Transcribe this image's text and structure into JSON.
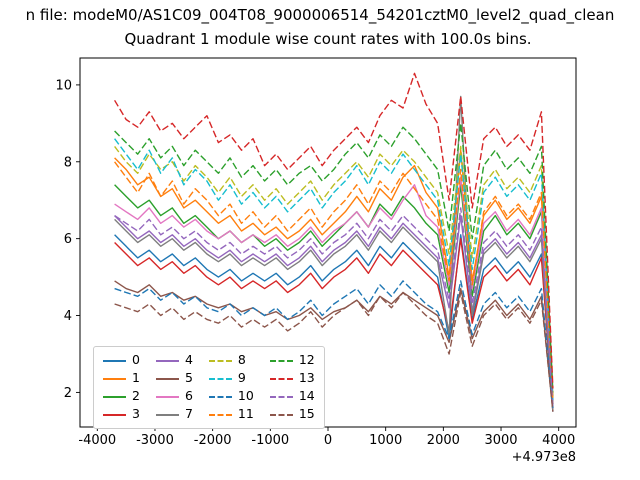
{
  "chart_data": {
    "type": "line",
    "file_label": "n file: modeM0/AS1C09_004T08_9000006514_54201cztM0_level2_quad_clean",
    "title": "Quadrant 1 module wise count rates with 100.0s bins.",
    "xlabel": "",
    "ylabel": "",
    "x_offset_label": "+4.973e8",
    "xlim": [
      -4300,
      4300
    ],
    "ylim": [
      1.1,
      10.7
    ],
    "x_ticks": [
      -4000,
      -3000,
      -2000,
      -1000,
      0,
      1000,
      2000,
      3000,
      4000
    ],
    "y_ticks": [
      2,
      4,
      6,
      8,
      10
    ],
    "grid": false,
    "legend_position": "lower left",
    "x": [
      -3700,
      -3500,
      -3300,
      -3100,
      -2900,
      -2700,
      -2500,
      -2300,
      -2100,
      -1900,
      -1700,
      -1500,
      -1300,
      -1100,
      -900,
      -700,
      -500,
      -300,
      -100,
      100,
      300,
      500,
      700,
      900,
      1100,
      1300,
      1500,
      1700,
      1900,
      2100,
      2300,
      2500,
      2700,
      2900,
      3100,
      3300,
      3500,
      3700,
      3900
    ],
    "series": [
      {
        "name": "0",
        "color": "#1f77b4",
        "dashed": false,
        "values": [
          6.1,
          5.8,
          5.5,
          5.7,
          5.4,
          5.6,
          5.3,
          5.5,
          5.2,
          5.0,
          5.2,
          4.9,
          5.1,
          4.9,
          5.1,
          4.8,
          5.0,
          5.3,
          4.9,
          5.2,
          5.4,
          5.7,
          5.3,
          5.8,
          5.5,
          5.9,
          5.6,
          5.3,
          5.0,
          3.4,
          6.1,
          3.9,
          5.2,
          5.5,
          5.1,
          5.4,
          5.0,
          5.6,
          1.5
        ]
      },
      {
        "name": "1",
        "color": "#ff7f0e",
        "dashed": false,
        "values": [
          8.1,
          7.8,
          7.4,
          7.6,
          7.1,
          7.3,
          6.8,
          7.0,
          6.7,
          6.4,
          6.6,
          6.2,
          6.4,
          6.1,
          6.3,
          6.0,
          6.2,
          6.5,
          6.1,
          6.4,
          6.7,
          7.1,
          6.7,
          7.3,
          7.0,
          7.6,
          7.9,
          7.2,
          6.8,
          5.0,
          8.3,
          4.9,
          6.6,
          7.0,
          6.5,
          6.8,
          6.4,
          7.1,
          1.7
        ]
      },
      {
        "name": "2",
        "color": "#2ca02c",
        "dashed": false,
        "values": [
          7.4,
          7.1,
          6.8,
          7.0,
          6.6,
          6.8,
          6.4,
          6.6,
          6.3,
          6.0,
          6.2,
          5.9,
          6.1,
          5.8,
          6.0,
          5.7,
          5.9,
          6.2,
          5.8,
          6.1,
          6.4,
          6.7,
          6.3,
          6.9,
          6.6,
          7.1,
          6.8,
          6.4,
          6.1,
          4.6,
          7.4,
          4.5,
          6.2,
          6.6,
          6.1,
          6.4,
          6.0,
          6.7,
          1.7
        ]
      },
      {
        "name": "3",
        "color": "#d62728",
        "dashed": false,
        "values": [
          5.9,
          5.6,
          5.3,
          5.5,
          5.2,
          5.4,
          5.1,
          5.3,
          5.0,
          4.8,
          5.0,
          4.7,
          4.9,
          4.7,
          4.9,
          4.6,
          4.8,
          5.1,
          4.7,
          5.0,
          5.2,
          5.5,
          5.1,
          5.6,
          5.3,
          5.7,
          5.4,
          5.1,
          4.8,
          3.6,
          6.0,
          3.8,
          5.0,
          5.3,
          4.9,
          5.2,
          4.8,
          5.5,
          1.6
        ]
      },
      {
        "name": "4",
        "color": "#9467bd",
        "dashed": false,
        "values": [
          6.6,
          6.3,
          6.0,
          6.2,
          5.9,
          6.1,
          5.8,
          6.0,
          5.7,
          5.5,
          5.7,
          5.4,
          5.6,
          5.4,
          5.6,
          5.3,
          5.5,
          5.8,
          5.4,
          5.7,
          5.9,
          6.2,
          5.8,
          6.3,
          6.0,
          6.4,
          6.1,
          5.8,
          5.5,
          4.2,
          6.6,
          4.1,
          5.7,
          6.0,
          5.6,
          5.9,
          5.5,
          6.1,
          1.5
        ]
      },
      {
        "name": "5",
        "color": "#8c564b",
        "dashed": false,
        "values": [
          4.9,
          4.7,
          4.6,
          4.8,
          4.5,
          4.6,
          4.4,
          4.5,
          4.3,
          4.2,
          4.3,
          4.1,
          4.2,
          4.0,
          4.1,
          3.9,
          4.0,
          4.2,
          3.9,
          4.1,
          4.2,
          4.4,
          4.1,
          4.5,
          4.3,
          4.6,
          4.4,
          4.2,
          4.0,
          3.3,
          4.7,
          3.4,
          4.1,
          4.4,
          4.0,
          4.3,
          3.9,
          4.5,
          1.5
        ]
      },
      {
        "name": "6",
        "color": "#e377c2",
        "dashed": false,
        "values": [
          6.9,
          6.7,
          6.5,
          6.8,
          6.4,
          6.6,
          6.3,
          6.5,
          6.2,
          6.0,
          6.2,
          5.9,
          6.1,
          5.9,
          6.1,
          5.8,
          6.0,
          6.3,
          5.9,
          6.2,
          6.4,
          6.7,
          6.3,
          6.8,
          6.5,
          7.0,
          7.4,
          6.6,
          6.3,
          4.8,
          7.6,
          4.7,
          6.4,
          6.7,
          6.2,
          6.5,
          6.1,
          6.8,
          1.6
        ]
      },
      {
        "name": "7",
        "color": "#7f7f7f",
        "dashed": false,
        "values": [
          6.5,
          6.2,
          5.9,
          6.1,
          5.8,
          6.0,
          5.7,
          5.9,
          5.6,
          5.4,
          5.6,
          5.3,
          5.5,
          5.3,
          5.5,
          5.2,
          5.4,
          5.7,
          5.3,
          5.6,
          5.8,
          6.1,
          5.7,
          6.2,
          5.9,
          6.3,
          6.0,
          5.7,
          5.4,
          3.5,
          9.7,
          4.0,
          5.6,
          5.9,
          5.5,
          5.8,
          5.4,
          6.0,
          1.5
        ]
      },
      {
        "name": "8",
        "color": "#bcbd22",
        "dashed": true,
        "values": [
          8.4,
          8.0,
          7.7,
          8.2,
          7.8,
          8.0,
          7.5,
          7.9,
          7.6,
          7.2,
          7.6,
          7.1,
          7.4,
          7.0,
          7.3,
          6.9,
          7.2,
          7.5,
          7.0,
          7.4,
          7.7,
          8.0,
          7.6,
          8.2,
          7.9,
          8.3,
          8.0,
          7.6,
          7.2,
          5.6,
          8.4,
          5.5,
          7.4,
          7.8,
          7.3,
          7.6,
          7.2,
          7.9,
          1.9
        ]
      },
      {
        "name": "9",
        "color": "#17becf",
        "dashed": true,
        "values": [
          8.6,
          8.2,
          7.8,
          8.3,
          7.7,
          8.1,
          7.4,
          7.8,
          7.5,
          7.0,
          7.4,
          6.9,
          7.2,
          6.8,
          7.1,
          6.7,
          7.0,
          7.3,
          6.8,
          7.2,
          7.5,
          7.9,
          7.4,
          8.0,
          7.7,
          8.2,
          7.8,
          7.4,
          7.0,
          5.3,
          8.2,
          5.2,
          7.2,
          7.6,
          7.1,
          7.4,
          7.0,
          7.7,
          1.8
        ]
      },
      {
        "name": "10",
        "color": "#1f77b4",
        "dashed": true,
        "values": [
          4.7,
          4.6,
          4.5,
          4.7,
          4.4,
          4.6,
          4.3,
          4.5,
          4.2,
          4.1,
          4.3,
          4.0,
          4.2,
          4.0,
          4.2,
          3.9,
          4.1,
          4.4,
          4.0,
          4.3,
          4.5,
          4.7,
          4.3,
          4.8,
          4.5,
          4.9,
          4.6,
          4.3,
          4.1,
          3.4,
          4.9,
          3.5,
          4.3,
          4.6,
          4.2,
          4.5,
          4.1,
          4.7,
          1.6
        ]
      },
      {
        "name": "11",
        "color": "#ff7f0e",
        "dashed": true,
        "values": [
          8.0,
          7.6,
          7.2,
          7.7,
          7.1,
          7.5,
          6.9,
          7.3,
          7.0,
          6.6,
          6.9,
          6.4,
          6.7,
          6.3,
          6.6,
          6.2,
          6.5,
          6.8,
          6.3,
          6.7,
          7.0,
          7.4,
          6.9,
          7.5,
          7.2,
          7.7,
          7.3,
          6.9,
          6.5,
          4.9,
          7.8,
          4.8,
          6.7,
          7.1,
          6.6,
          6.9,
          6.5,
          7.2,
          1.8
        ]
      },
      {
        "name": "12",
        "color": "#2ca02c",
        "dashed": true,
        "values": [
          8.8,
          8.5,
          8.2,
          8.6,
          8.1,
          8.4,
          7.9,
          8.3,
          8.0,
          7.7,
          8.1,
          7.6,
          7.9,
          7.5,
          7.8,
          7.4,
          7.7,
          7.9,
          7.5,
          7.8,
          8.2,
          8.5,
          8.1,
          8.7,
          8.4,
          8.9,
          8.6,
          8.2,
          7.8,
          6.2,
          9.0,
          6.0,
          7.9,
          8.3,
          7.8,
          8.1,
          7.7,
          8.4,
          2.0
        ]
      },
      {
        "name": "13",
        "color": "#d62728",
        "dashed": true,
        "values": [
          9.6,
          9.1,
          8.9,
          9.3,
          8.8,
          9.0,
          8.6,
          8.9,
          9.2,
          8.5,
          8.7,
          8.3,
          8.6,
          7.9,
          8.2,
          7.8,
          8.1,
          8.4,
          7.9,
          8.3,
          8.6,
          8.9,
          8.5,
          9.2,
          9.6,
          9.4,
          10.3,
          9.5,
          9.0,
          7.0,
          9.7,
          6.8,
          8.6,
          8.9,
          8.4,
          8.7,
          8.3,
          9.3,
          2.1
        ]
      },
      {
        "name": "14",
        "color": "#9467bd",
        "dashed": true,
        "values": [
          6.6,
          6.4,
          6.2,
          6.5,
          6.1,
          6.3,
          6.0,
          6.2,
          5.9,
          5.7,
          5.9,
          5.6,
          5.8,
          5.6,
          5.8,
          5.5,
          5.7,
          6.0,
          5.6,
          5.9,
          6.1,
          6.4,
          6.0,
          6.5,
          6.2,
          6.6,
          6.3,
          6.0,
          5.7,
          4.4,
          6.8,
          4.3,
          5.9,
          6.2,
          5.8,
          6.1,
          5.7,
          6.3,
          1.6
        ]
      },
      {
        "name": "15",
        "color": "#8c564b",
        "dashed": true,
        "values": [
          4.3,
          4.2,
          4.1,
          4.3,
          4.0,
          4.2,
          3.9,
          4.1,
          3.9,
          3.8,
          4.0,
          3.7,
          3.9,
          3.7,
          3.9,
          3.6,
          3.8,
          4.1,
          3.7,
          4.0,
          4.2,
          4.4,
          4.0,
          4.5,
          4.2,
          4.6,
          4.3,
          4.0,
          3.8,
          3.0,
          4.6,
          3.2,
          4.0,
          4.3,
          3.9,
          4.2,
          3.8,
          4.4,
          1.5
        ]
      }
    ]
  }
}
